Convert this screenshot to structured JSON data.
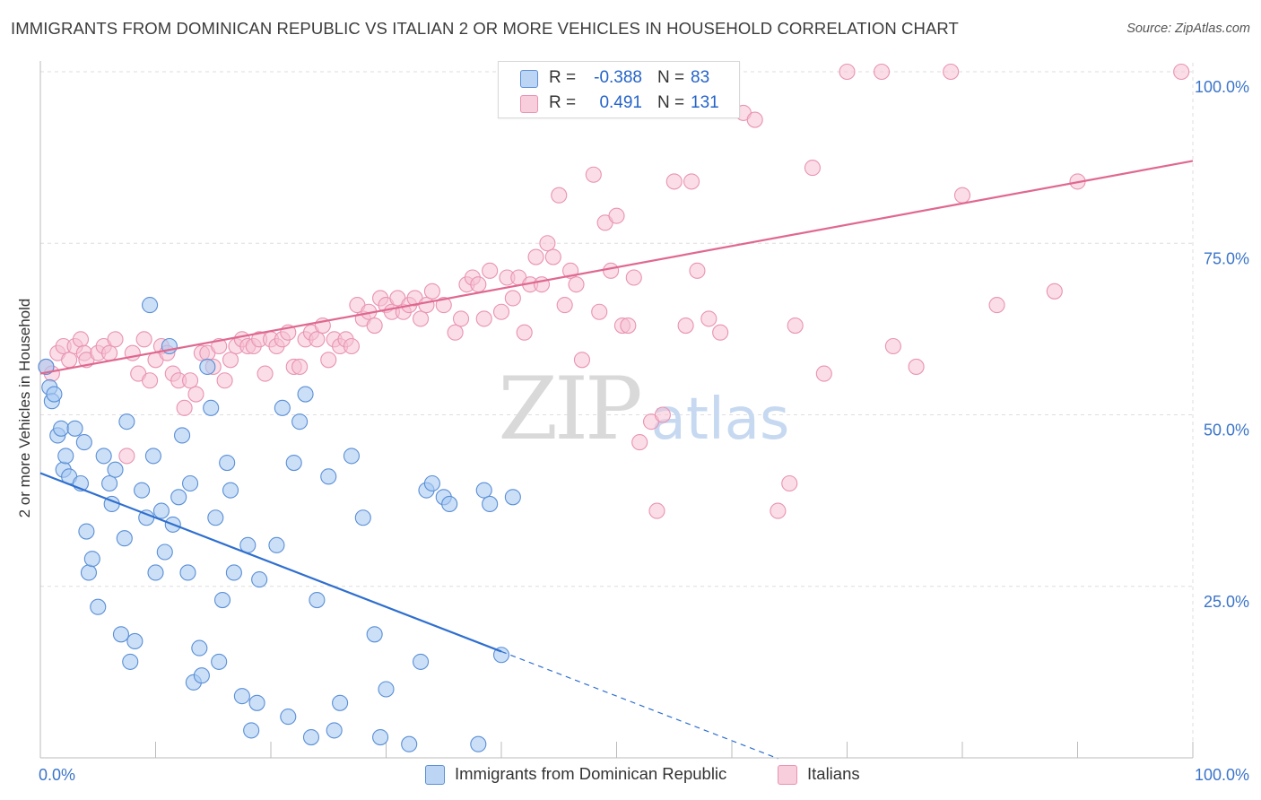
{
  "header": {
    "title": "IMMIGRANTS FROM DOMINICAN REPUBLIC VS ITALIAN 2 OR MORE VEHICLES IN HOUSEHOLD CORRELATION CHART",
    "source": "Source: ZipAtlas.com"
  },
  "legend": {
    "rows": [
      {
        "label": "R =",
        "r": "-0.388",
        "n_label": "N =",
        "n": "83"
      },
      {
        "label": "R =",
        "r": "0.491",
        "n_label": "N =",
        "n": "131"
      }
    ],
    "bottom": [
      "Immigrants from Dominican Republic",
      "Italians"
    ]
  },
  "watermark": {
    "zip": "ZIP",
    "atlas": "atlas"
  },
  "colors": {
    "blue_fill": "#a9c9f2",
    "blue_stroke": "#5a8fd6",
    "blue_line": "#2f6fcf",
    "pink_fill": "#f6c1d3",
    "pink_stroke": "#e993b2",
    "pink_line": "#e0688f",
    "axis_text": "#3a74c9",
    "grid": "#dedede"
  },
  "chart_data": {
    "type": "scatter",
    "title": "IMMIGRANTS FROM DOMINICAN REPUBLIC VS ITALIAN 2 OR MORE VEHICLES IN HOUSEHOLD CORRELATION CHART",
    "xlabel": "",
    "ylabel": "2 or more Vehicles in Household",
    "xlim": [
      0,
      100
    ],
    "ylim": [
      0,
      100
    ],
    "x_tick_labels": [
      "0.0%",
      "100.0%"
    ],
    "y_tick_labels": [
      "100.0%",
      "75.0%",
      "50.0%",
      "25.0%"
    ],
    "y_ticks": [
      100,
      75,
      50,
      25
    ],
    "grid": true,
    "legend_position": "top-center",
    "series": [
      {
        "name": "Immigrants from Dominican Republic",
        "color": "blue",
        "r": -0.388,
        "n": 83,
        "trend": {
          "x0": 0,
          "y0": 41.5,
          "x1": 40,
          "y1": 15.5,
          "dashed_to_x": 64
        },
        "points": [
          [
            0.5,
            57
          ],
          [
            0.8,
            54
          ],
          [
            1,
            52
          ],
          [
            1.2,
            53
          ],
          [
            1.5,
            47
          ],
          [
            1.8,
            48
          ],
          [
            2,
            42
          ],
          [
            2.2,
            44
          ],
          [
            2.5,
            41
          ],
          [
            3,
            48
          ],
          [
            3.5,
            40
          ],
          [
            3.8,
            46
          ],
          [
            4,
            33
          ],
          [
            4.2,
            27
          ],
          [
            4.5,
            29
          ],
          [
            5,
            22
          ],
          [
            5.5,
            44
          ],
          [
            6,
            40
          ],
          [
            6.2,
            37
          ],
          [
            6.5,
            42
          ],
          [
            7,
            18
          ],
          [
            7.3,
            32
          ],
          [
            7.5,
            49
          ],
          [
            7.8,
            14
          ],
          [
            8.2,
            17
          ],
          [
            8.8,
            39
          ],
          [
            9.2,
            35
          ],
          [
            9.5,
            66
          ],
          [
            9.8,
            44
          ],
          [
            10,
            27
          ],
          [
            10.5,
            36
          ],
          [
            10.8,
            30
          ],
          [
            11.2,
            60
          ],
          [
            11.5,
            34
          ],
          [
            12,
            38
          ],
          [
            12.3,
            47
          ],
          [
            12.8,
            27
          ],
          [
            13,
            40
          ],
          [
            13.3,
            11
          ],
          [
            13.8,
            16
          ],
          [
            14,
            12
          ],
          [
            14.5,
            57
          ],
          [
            14.8,
            51
          ],
          [
            15.2,
            35
          ],
          [
            15.5,
            14
          ],
          [
            15.8,
            23
          ],
          [
            16.2,
            43
          ],
          [
            16.5,
            39
          ],
          [
            16.8,
            27
          ],
          [
            17.5,
            9
          ],
          [
            18,
            31
          ],
          [
            18.3,
            4
          ],
          [
            18.8,
            8
          ],
          [
            19,
            26
          ],
          [
            20.5,
            31
          ],
          [
            21,
            51
          ],
          [
            21.5,
            6
          ],
          [
            22,
            43
          ],
          [
            22.5,
            49
          ],
          [
            23,
            53
          ],
          [
            23.5,
            3
          ],
          [
            24,
            23
          ],
          [
            25,
            41
          ],
          [
            25.5,
            4
          ],
          [
            26,
            8
          ],
          [
            27,
            44
          ],
          [
            28,
            35
          ],
          [
            29,
            18
          ],
          [
            29.5,
            3
          ],
          [
            30,
            10
          ],
          [
            32,
            2
          ],
          [
            33,
            14
          ],
          [
            33.5,
            39
          ],
          [
            34,
            40
          ],
          [
            35,
            38
          ],
          [
            35.5,
            37
          ],
          [
            38,
            2
          ],
          [
            38.5,
            39
          ],
          [
            39,
            37
          ],
          [
            40,
            15
          ],
          [
            41,
            38
          ]
        ]
      },
      {
        "name": "Italians",
        "color": "pink",
        "r": 0.491,
        "n": 131,
        "trend": {
          "x0": 0,
          "y0": 56,
          "x1": 100,
          "y1": 87
        },
        "points": [
          [
            0.5,
            57
          ],
          [
            1,
            56
          ],
          [
            1.5,
            59
          ],
          [
            2,
            60
          ],
          [
            2.5,
            58
          ],
          [
            3,
            60
          ],
          [
            3.5,
            61
          ],
          [
            3.8,
            59
          ],
          [
            4,
            58
          ],
          [
            5,
            59
          ],
          [
            5.5,
            60
          ],
          [
            6,
            59
          ],
          [
            6.5,
            61
          ],
          [
            7.5,
            44
          ],
          [
            8,
            59
          ],
          [
            8.5,
            56
          ],
          [
            9,
            61
          ],
          [
            9.5,
            55
          ],
          [
            10,
            58
          ],
          [
            10.5,
            60
          ],
          [
            11,
            59
          ],
          [
            11.5,
            56
          ],
          [
            12,
            55
          ],
          [
            12.5,
            51
          ],
          [
            13,
            55
          ],
          [
            13.5,
            53
          ],
          [
            14,
            59
          ],
          [
            14.5,
            59
          ],
          [
            15,
            57
          ],
          [
            15.5,
            60
          ],
          [
            16,
            55
          ],
          [
            16.5,
            58
          ],
          [
            17,
            60
          ],
          [
            17.5,
            61
          ],
          [
            18,
            60
          ],
          [
            18.5,
            60
          ],
          [
            19,
            61
          ],
          [
            19.5,
            56
          ],
          [
            20,
            61
          ],
          [
            20.5,
            60
          ],
          [
            21,
            61
          ],
          [
            21.5,
            62
          ],
          [
            22,
            57
          ],
          [
            22.5,
            57
          ],
          [
            23,
            61
          ],
          [
            23.5,
            62
          ],
          [
            24,
            61
          ],
          [
            24.5,
            63
          ],
          [
            25,
            58
          ],
          [
            25.5,
            61
          ],
          [
            26,
            60
          ],
          [
            26.5,
            61
          ],
          [
            27,
            60
          ],
          [
            27.5,
            66
          ],
          [
            28,
            64
          ],
          [
            28.5,
            65
          ],
          [
            29,
            63
          ],
          [
            29.5,
            67
          ],
          [
            30,
            66
          ],
          [
            30.5,
            65
          ],
          [
            31,
            67
          ],
          [
            31.5,
            65
          ],
          [
            32,
            66
          ],
          [
            32.5,
            67
          ],
          [
            33,
            64
          ],
          [
            33.5,
            66
          ],
          [
            34,
            68
          ],
          [
            35,
            66
          ],
          [
            36,
            62
          ],
          [
            36.5,
            64
          ],
          [
            37,
            69
          ],
          [
            37.5,
            70
          ],
          [
            38,
            69
          ],
          [
            38.5,
            64
          ],
          [
            39,
            71
          ],
          [
            40,
            65
          ],
          [
            40.5,
            70
          ],
          [
            41,
            67
          ],
          [
            41.5,
            70
          ],
          [
            42,
            62
          ],
          [
            42.5,
            69
          ],
          [
            43,
            73
          ],
          [
            43.5,
            69
          ],
          [
            44,
            75
          ],
          [
            44.5,
            73
          ],
          [
            45,
            82
          ],
          [
            45.5,
            66
          ],
          [
            46,
            71
          ],
          [
            46.5,
            69
          ],
          [
            47,
            58
          ],
          [
            48,
            85
          ],
          [
            48.5,
            65
          ],
          [
            49,
            78
          ],
          [
            49.5,
            71
          ],
          [
            50,
            79
          ],
          [
            50.5,
            63
          ],
          [
            51,
            63
          ],
          [
            51.5,
            70
          ],
          [
            52,
            46
          ],
          [
            53,
            49
          ],
          [
            53.5,
            36
          ],
          [
            54,
            50
          ],
          [
            55,
            84
          ],
          [
            56,
            63
          ],
          [
            56.5,
            84
          ],
          [
            57,
            71
          ],
          [
            58,
            64
          ],
          [
            59,
            62
          ],
          [
            60,
            100
          ],
          [
            61,
            94
          ],
          [
            62,
            93
          ],
          [
            64,
            36
          ],
          [
            65,
            40
          ],
          [
            65.5,
            63
          ],
          [
            67,
            86
          ],
          [
            68,
            56
          ],
          [
            70,
            100
          ],
          [
            73,
            100
          ],
          [
            74,
            60
          ],
          [
            76,
            57
          ],
          [
            79,
            100
          ],
          [
            80,
            82
          ],
          [
            83,
            66
          ],
          [
            88,
            68
          ],
          [
            90,
            84
          ],
          [
            99,
            100
          ]
        ]
      }
    ]
  }
}
